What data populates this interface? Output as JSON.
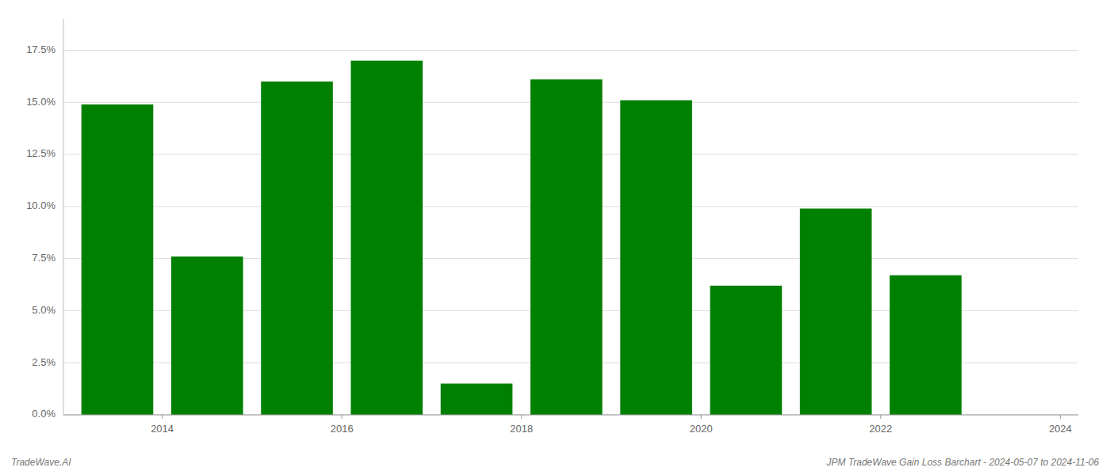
{
  "chart_data": {
    "type": "bar",
    "x": [
      2013.5,
      2014.5,
      2015.5,
      2016.5,
      2017.5,
      2018.5,
      2019.5,
      2020.5,
      2021.5,
      2022.5
    ],
    "values": [
      0.149,
      0.076,
      0.16,
      0.17,
      0.015,
      0.161,
      0.151,
      0.062,
      0.099,
      0.067
    ],
    "color": "#008000",
    "xlim": [
      2012.9,
      2024.2
    ],
    "xticks": [
      2014,
      2016,
      2018,
      2020,
      2022,
      2024
    ],
    "ylim": [
      0.0,
      0.19
    ],
    "yticks": [
      {
        "value": 0.0,
        "label": "0.0%"
      },
      {
        "value": 0.025,
        "label": "2.5%"
      },
      {
        "value": 0.05,
        "label": "5.0%"
      },
      {
        "value": 0.075,
        "label": "7.5%"
      },
      {
        "value": 0.1,
        "label": "10.0%"
      },
      {
        "value": 0.125,
        "label": "12.5%"
      },
      {
        "value": 0.15,
        "label": "15.0%"
      },
      {
        "value": 0.175,
        "label": "17.5%"
      }
    ],
    "grid": true,
    "annotations": [
      "TradeWave.AI",
      "JPM TradeWave Gain Loss Barchart - 2024-05-07 to 2024-11-06"
    ]
  }
}
